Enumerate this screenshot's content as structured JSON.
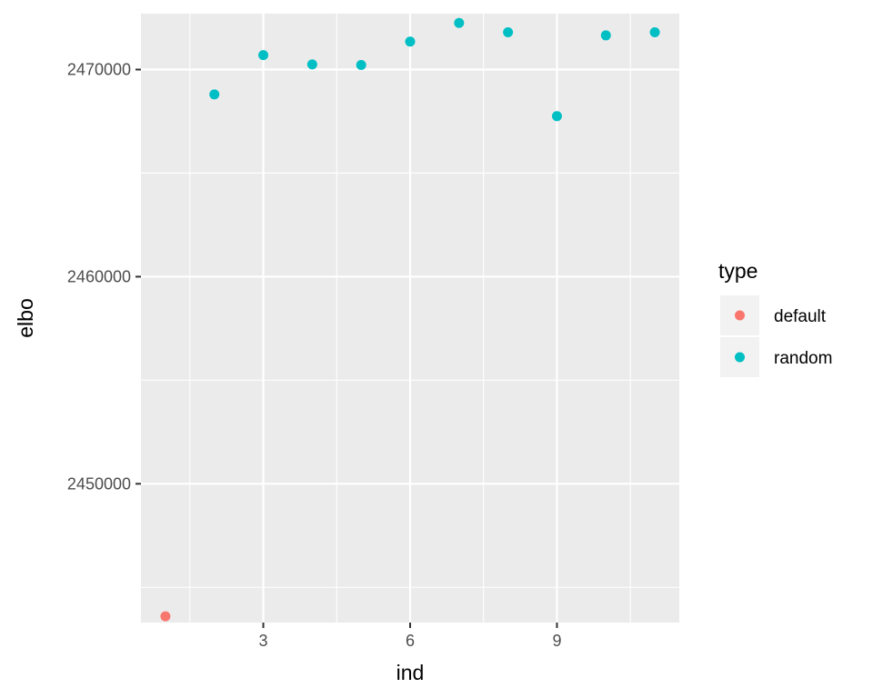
{
  "chart_data": {
    "type": "scatter",
    "title": "",
    "xlabel": "ind",
    "ylabel": "elbo",
    "xlim": [
      0.5,
      11.5
    ],
    "ylim": [
      2443300,
      2472700
    ],
    "x_ticks": [
      3,
      6,
      9
    ],
    "x_tick_labels": [
      "3",
      "6",
      "9"
    ],
    "x_minor_ticks": [
      1.5,
      4.5,
      7.5,
      10.5
    ],
    "y_ticks": [
      2450000,
      2460000,
      2470000
    ],
    "y_tick_labels": [
      "2450000",
      "2460000",
      "2470000"
    ],
    "y_minor_ticks": [
      2445000,
      2455000,
      2465000
    ],
    "grid": true,
    "legend": {
      "title": "type",
      "position": "right",
      "entries": [
        {
          "label": "default",
          "color": "#F8766D"
        },
        {
          "label": "random",
          "color": "#00BFC4"
        }
      ]
    },
    "series": [
      {
        "name": "default",
        "color": "#F8766D",
        "points": [
          {
            "x": 1,
            "y": 2443600
          }
        ]
      },
      {
        "name": "random",
        "color": "#00BFC4",
        "points": [
          {
            "x": 2,
            "y": 2468800
          },
          {
            "x": 3,
            "y": 2470700
          },
          {
            "x": 4,
            "y": 2470250
          },
          {
            "x": 5,
            "y": 2470220
          },
          {
            "x": 6,
            "y": 2471350
          },
          {
            "x": 7,
            "y": 2472250
          },
          {
            "x": 8,
            "y": 2471800
          },
          {
            "x": 9,
            "y": 2467750
          },
          {
            "x": 10,
            "y": 2471650
          },
          {
            "x": 11,
            "y": 2471800
          }
        ]
      }
    ]
  },
  "colors": {
    "panel_background": "#EBEBEB",
    "grid_line": "#FFFFFF",
    "default": "#F8766D",
    "random": "#00BFC4"
  }
}
